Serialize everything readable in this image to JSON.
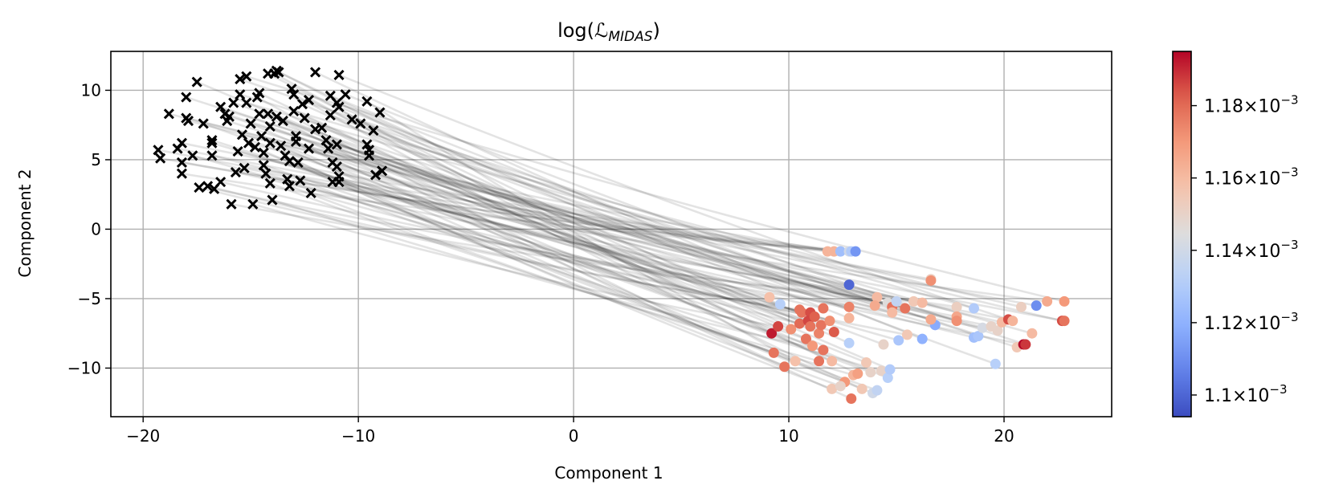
{
  "chart_data": {
    "type": "scatter",
    "title_main": "log(",
    "title_symbol": "ℒ",
    "title_sub": "MIDAS",
    "title_close": ")",
    "xlabel": "Component 1",
    "ylabel": "Component 2",
    "xlim": [
      -21.5,
      25.0
    ],
    "ylim": [
      -13.5,
      12.8
    ],
    "xticks": [
      -20,
      -10,
      0,
      10,
      20
    ],
    "xtick_labels": [
      "−20",
      "−10",
      "0",
      "10",
      "20"
    ],
    "yticks": [
      -10,
      -5,
      0,
      5,
      10
    ],
    "ytick_labels": [
      "−10",
      "−5",
      "0",
      "5",
      "10"
    ],
    "grid": true,
    "colormap": "coolwarm",
    "colorbar": {
      "vmin": 1.094,
      "vmax": 1.195,
      "ticks": [
        1.1,
        1.12,
        1.14,
        1.16,
        1.18
      ],
      "tick_mantissas": [
        "1.1",
        "1.12",
        "1.14",
        "1.16",
        "1.18"
      ],
      "tick_suffix": "×10",
      "tick_exponent": "−3",
      "scale_note": "values in units of 1e-3"
    },
    "source_marker": "x",
    "source_color": "#000000",
    "line_color": "#000000",
    "source_points": [
      [
        -19.3,
        5.7
      ],
      [
        -19.2,
        5.1
      ],
      [
        -18.8,
        8.3
      ],
      [
        -18.4,
        5.8
      ],
      [
        -18.2,
        6.2
      ],
      [
        -18.2,
        4.8
      ],
      [
        -18.2,
        4.0
      ],
      [
        -18.0,
        9.5
      ],
      [
        -18.0,
        8.0
      ],
      [
        -17.9,
        7.8
      ],
      [
        -17.7,
        5.3
      ],
      [
        -17.5,
        10.6
      ],
      [
        -17.4,
        3.0
      ],
      [
        -17.2,
        7.6
      ],
      [
        -17.0,
        3.1
      ],
      [
        -16.8,
        6.4
      ],
      [
        -16.8,
        6.2
      ],
      [
        -16.8,
        5.3
      ],
      [
        -16.7,
        2.9
      ],
      [
        -16.4,
        8.8
      ],
      [
        -16.4,
        3.4
      ],
      [
        -16.2,
        8.3
      ],
      [
        -16.1,
        7.8
      ],
      [
        -16.0,
        8.1
      ],
      [
        -15.9,
        1.8
      ],
      [
        -15.8,
        9.1
      ],
      [
        -15.7,
        4.1
      ],
      [
        -15.6,
        5.6
      ],
      [
        -15.5,
        10.8
      ],
      [
        -15.5,
        9.7
      ],
      [
        -15.4,
        6.8
      ],
      [
        -15.3,
        4.4
      ],
      [
        -15.2,
        11.0
      ],
      [
        -15.2,
        9.1
      ],
      [
        -15.1,
        6.2
      ],
      [
        -15.0,
        7.6
      ],
      [
        -14.9,
        1.8
      ],
      [
        -14.8,
        5.9
      ],
      [
        -14.7,
        9.5
      ],
      [
        -14.6,
        9.8
      ],
      [
        -14.6,
        8.3
      ],
      [
        -14.5,
        6.7
      ],
      [
        -14.4,
        5.5
      ],
      [
        -14.4,
        4.6
      ],
      [
        -14.3,
        4.0
      ],
      [
        -14.2,
        11.2
      ],
      [
        -14.2,
        8.3
      ],
      [
        -14.1,
        7.4
      ],
      [
        -14.1,
        6.2
      ],
      [
        -14.1,
        3.3
      ],
      [
        -14.0,
        2.1
      ],
      [
        -13.9,
        11.2
      ],
      [
        -13.8,
        8.1
      ],
      [
        -13.8,
        11.4
      ],
      [
        -13.7,
        11.3
      ],
      [
        -13.6,
        6.0
      ],
      [
        -13.5,
        7.8
      ],
      [
        -13.4,
        5.3
      ],
      [
        -13.2,
        4.9
      ],
      [
        -13.2,
        3.1
      ],
      [
        -13.1,
        10.1
      ],
      [
        -13.0,
        9.7
      ],
      [
        -13.0,
        8.5
      ],
      [
        -12.9,
        6.7
      ],
      [
        -12.9,
        6.3
      ],
      [
        -12.8,
        4.8
      ],
      [
        -12.7,
        3.5
      ],
      [
        -12.6,
        9.0
      ],
      [
        -12.5,
        8.0
      ],
      [
        -12.3,
        9.3
      ],
      [
        -12.3,
        5.8
      ],
      [
        -12.2,
        2.6
      ],
      [
        -12.0,
        11.3
      ],
      [
        -11.7,
        7.3
      ],
      [
        -11.5,
        6.4
      ],
      [
        -11.4,
        5.8
      ],
      [
        -11.3,
        9.6
      ],
      [
        -11.3,
        8.2
      ],
      [
        -11.2,
        4.8
      ],
      [
        -11.2,
        3.4
      ],
      [
        -11.0,
        9.1
      ],
      [
        -11.0,
        6.1
      ],
      [
        -11.0,
        4.5
      ],
      [
        -10.9,
        11.1
      ],
      [
        -10.9,
        8.8
      ],
      [
        -10.9,
        3.4
      ],
      [
        -10.6,
        9.7
      ],
      [
        -10.3,
        7.9
      ],
      [
        -9.9,
        7.6
      ],
      [
        -9.6,
        9.2
      ],
      [
        -9.6,
        6.1
      ],
      [
        -9.5,
        5.7
      ],
      [
        -9.5,
        5.3
      ],
      [
        -9.3,
        7.1
      ],
      [
        -9.2,
        3.9
      ],
      [
        -9.0,
        8.4
      ],
      [
        -8.9,
        4.2
      ],
      [
        -10.9,
        3.8
      ],
      [
        -12.0,
        7.2
      ],
      [
        -13.3,
        3.6
      ]
    ],
    "target_points": [
      [
        11.8,
        -1.6,
        1.162
      ],
      [
        12.1,
        -1.6,
        1.15
      ],
      [
        12.1,
        -1.6,
        1.162
      ],
      [
        12.4,
        -1.6,
        1.125
      ],
      [
        12.8,
        -1.6,
        1.14
      ],
      [
        12.9,
        -1.6,
        1.13
      ],
      [
        13.1,
        -1.6,
        1.112
      ],
      [
        12.8,
        -4.0,
        1.1
      ],
      [
        16.6,
        -3.6,
        1.152
      ],
      [
        16.6,
        -3.7,
        1.172
      ],
      [
        9.1,
        -4.9,
        1.158
      ],
      [
        9.6,
        -5.4,
        1.132
      ],
      [
        10.5,
        -5.8,
        1.178
      ],
      [
        10.6,
        -6.0,
        1.178
      ],
      [
        11.0,
        -6.0,
        1.185
      ],
      [
        11.6,
        -5.7,
        1.178
      ],
      [
        12.8,
        -5.6,
        1.175
      ],
      [
        14.1,
        -4.9,
        1.16
      ],
      [
        14.6,
        -5.3,
        1.145
      ],
      [
        14.8,
        -5.6,
        1.178
      ],
      [
        14.8,
        -6.0,
        1.16
      ],
      [
        15.0,
        -5.2,
        1.135
      ],
      [
        15.4,
        -5.7,
        1.178
      ],
      [
        15.8,
        -5.2,
        1.155
      ],
      [
        16.2,
        -5.3,
        1.16
      ],
      [
        16.8,
        -6.9,
        1.118
      ],
      [
        17.8,
        -5.6,
        1.152
      ],
      [
        17.8,
        -6.3,
        1.166
      ],
      [
        18.6,
        -5.7,
        1.13
      ],
      [
        20.8,
        -5.6,
        1.152
      ],
      [
        21.5,
        -5.5,
        1.11
      ],
      [
        22.0,
        -5.2,
        1.165
      ],
      [
        22.8,
        -5.2,
        1.17
      ],
      [
        22.7,
        -6.6,
        1.185
      ],
      [
        22.8,
        -6.6,
        1.178
      ],
      [
        9.2,
        -7.5,
        1.192
      ],
      [
        9.5,
        -7.0,
        1.186
      ],
      [
        9.3,
        -8.9,
        1.178
      ],
      [
        9.8,
        -9.9,
        1.178
      ],
      [
        10.1,
        -7.2,
        1.172
      ],
      [
        10.5,
        -6.8,
        1.18
      ],
      [
        10.8,
        -7.9,
        1.178
      ],
      [
        10.9,
        -6.6,
        1.186
      ],
      [
        11.0,
        -7.0,
        1.178
      ],
      [
        11.2,
        -6.3,
        1.182
      ],
      [
        11.4,
        -7.5,
        1.175
      ],
      [
        11.5,
        -6.9,
        1.178
      ],
      [
        11.9,
        -6.6,
        1.172
      ],
      [
        11.1,
        -8.4,
        1.17
      ],
      [
        11.4,
        -9.5,
        1.178
      ],
      [
        11.6,
        -8.7,
        1.178
      ],
      [
        12.0,
        -9.5,
        1.16
      ],
      [
        12.1,
        -7.4,
        1.183
      ],
      [
        12.8,
        -8.2,
        1.132
      ],
      [
        12.8,
        -6.4,
        1.162
      ],
      [
        12.6,
        -11.0,
        1.17
      ],
      [
        12.9,
        -12.2,
        1.178
      ],
      [
        12.0,
        -11.5,
        1.155
      ],
      [
        12.4,
        -11.3,
        1.15
      ],
      [
        13.0,
        -10.5,
        1.162
      ],
      [
        13.2,
        -10.4,
        1.168
      ],
      [
        13.4,
        -11.5,
        1.155
      ],
      [
        13.6,
        -9.6,
        1.155
      ],
      [
        13.8,
        -10.3,
        1.15
      ],
      [
        13.9,
        -11.8,
        1.14
      ],
      [
        14.1,
        -11.6,
        1.135
      ],
      [
        14.3,
        -10.2,
        1.15
      ],
      [
        14.4,
        -8.3,
        1.15
      ],
      [
        14.6,
        -10.7,
        1.132
      ],
      [
        14.7,
        -10.1,
        1.13
      ],
      [
        15.1,
        -8.0,
        1.128
      ],
      [
        15.5,
        -7.6,
        1.155
      ],
      [
        16.2,
        -7.9,
        1.12
      ],
      [
        16.6,
        -6.5,
        1.165
      ],
      [
        17.8,
        -6.6,
        1.172
      ],
      [
        18.6,
        -7.8,
        1.125
      ],
      [
        18.8,
        -7.7,
        1.128
      ],
      [
        19.0,
        -7.1,
        1.142
      ],
      [
        19.4,
        -7.0,
        1.15
      ],
      [
        19.7,
        -7.3,
        1.15
      ],
      [
        19.6,
        -9.7,
        1.132
      ],
      [
        19.9,
        -6.7,
        1.16
      ],
      [
        20.2,
        -6.5,
        1.185
      ],
      [
        20.4,
        -6.6,
        1.162
      ],
      [
        20.6,
        -8.5,
        1.155
      ],
      [
        20.9,
        -8.3,
        1.195
      ],
      [
        21.0,
        -8.3,
        1.188
      ],
      [
        21.3,
        -7.5,
        1.16
      ],
      [
        14.0,
        -5.5,
        1.165
      ],
      [
        10.3,
        -9.5,
        1.158
      ]
    ]
  }
}
